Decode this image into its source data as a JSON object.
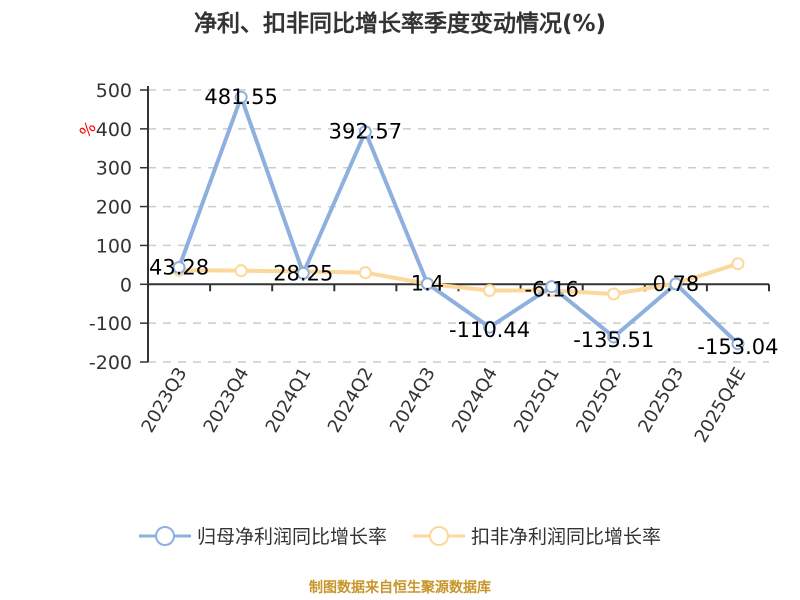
{
  "title": "净利、扣非同比增长率季度变动情况(%)",
  "y_unit_label": "%",
  "source": "制图数据来自恒生聚源数据库",
  "colors": {
    "series1": "#8eb0de",
    "series2": "#fcd89a",
    "grid": "#cccccc",
    "axis": "#333333",
    "unit_label": "#ff0000",
    "source": "#c8952b"
  },
  "legend": [
    {
      "label": "归母净利润同比增长率",
      "color": "#8eb0de"
    },
    {
      "label": "扣非净利润同比增长率",
      "color": "#fcd89a"
    }
  ],
  "chart_data": {
    "type": "line",
    "title": "净利、扣非同比增长率季度变动情况(%)",
    "xlabel": "",
    "ylabel": "%",
    "ylim": [
      -200,
      500
    ],
    "yticks": [
      500,
      400,
      300,
      200,
      100,
      0,
      -100,
      -200
    ],
    "grid": true,
    "legend_position": "bottom",
    "categories": [
      "2023Q3",
      "2023Q4",
      "2024Q1",
      "2024Q2",
      "2024Q3",
      "2024Q4",
      "2025Q1",
      "2025Q2",
      "2025Q3",
      "2025Q4E"
    ],
    "series": [
      {
        "name": "归母净利润同比增长率",
        "values": [
          43.28,
          481.55,
          28.25,
          392.57,
          1.4,
          -110.44,
          -6.16,
          -135.51,
          0.78,
          -153.04
        ],
        "data_labels": [
          "43.28",
          "481.55",
          "28.25",
          "392.57",
          "1.4",
          "-110.44",
          "-6.16",
          "-135.51",
          "0.78",
          "-153.04"
        ]
      },
      {
        "name": "扣非净利润同比增长率",
        "values": [
          36,
          35,
          33,
          30,
          1,
          -16,
          -16,
          -25,
          2,
          53
        ]
      }
    ]
  }
}
